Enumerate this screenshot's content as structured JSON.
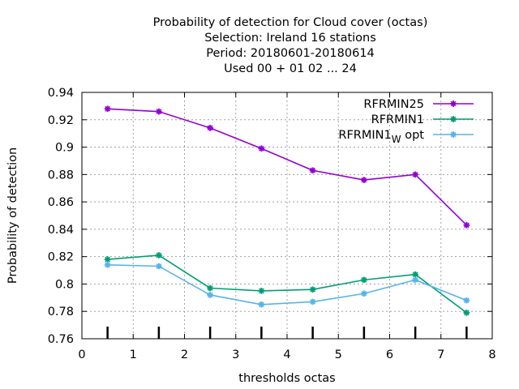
{
  "chart_data": {
    "type": "line",
    "title_lines": [
      "Probability of detection  for Cloud cover (octas)",
      "Selection: Ireland     16 stations",
      "Period: 20180601-20180614",
      "Used  00 + 01 02 ... 24"
    ],
    "xlabel": "thresholds octas",
    "ylabel": "Probability of detection",
    "xlim": [
      0,
      8
    ],
    "ylim": [
      0.76,
      0.94
    ],
    "x_ticks": [
      "0",
      "1",
      "2",
      "3",
      "4",
      "5",
      "6",
      "7",
      "8"
    ],
    "y_ticks": [
      "0.76",
      "0.78",
      "0.8",
      "0.82",
      "0.84",
      "0.86",
      "0.88",
      "0.9",
      "0.92",
      "0.94"
    ],
    "grid": true,
    "legend_position": "top-right",
    "x": [
      0.5,
      1.5,
      2.5,
      3.5,
      4.5,
      5.5,
      6.5,
      7.5
    ],
    "series": [
      {
        "name": "RFRMIN25",
        "color": "#9400d3",
        "values": [
          0.928,
          0.926,
          0.914,
          0.899,
          0.883,
          0.876,
          0.88,
          0.843
        ]
      },
      {
        "name": "RFRMIN1",
        "color": "#009e73",
        "values": [
          0.818,
          0.821,
          0.797,
          0.795,
          0.796,
          0.803,
          0.807,
          0.779
        ]
      },
      {
        "name": "RFRMIN1",
        "name_subscript": "W",
        "name_suffix": "opt",
        "color": "#56b4e9",
        "values": [
          0.814,
          0.813,
          0.792,
          0.785,
          0.787,
          0.793,
          0.803,
          0.788
        ]
      }
    ],
    "bottom_tick_marks_x": [
      0.5,
      1.5,
      2.5,
      3.5,
      4.5,
      5.5,
      6.5,
      7.5
    ]
  }
}
